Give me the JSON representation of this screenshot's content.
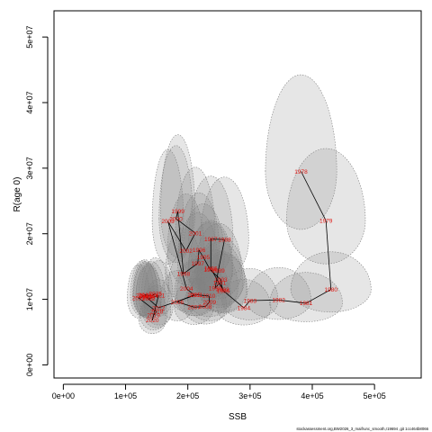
{
  "chart_data": {
    "type": "scatter",
    "xlabel": "SSB",
    "ylabel": "R(age 0)",
    "xlim": [
      -15000,
      575000
    ],
    "ylim": [
      -2000000,
      54000000
    ],
    "xticks": [
      0,
      100000,
      200000,
      300000,
      400000,
      500000
    ],
    "xtick_labels": [
      "0e+00",
      "1e+05",
      "2e+05",
      "3e+05",
      "4e+05",
      "5e+05"
    ],
    "yticks": [
      0,
      10000000,
      20000000,
      30000000,
      40000000,
      50000000
    ],
    "ytick_labels": [
      "0e+00",
      "1e+07",
      "2e+07",
      "3e+07",
      "4e+07",
      "5e+07"
    ],
    "grid": false,
    "footer": "stockassessment.org,BW2026_3_maifrunc_smooth,r19694 ,git 1cc464b8066",
    "colors": {
      "line": "#000000",
      "label": "#e0140f",
      "ellipse_fill": "#808080",
      "ellipse_stroke": "#808080"
    },
    "ellipse_ci": {
      "sx_ratio": 0.15,
      "sy_ratio_up": 0.5,
      "sy_ratio_down": 0.3
    },
    "points": [
      {
        "year": "1978",
        "x": 382000,
        "y": 29500000
      },
      {
        "year": "1979",
        "x": 422000,
        "y": 22000000
      },
      {
        "year": "1980",
        "x": 430000,
        "y": 11500000
      },
      {
        "year": "1981",
        "x": 390000,
        "y": 9400000
      },
      {
        "year": "1982",
        "x": 346000,
        "y": 9900000
      },
      {
        "year": "1983",
        "x": 300000,
        "y": 9800000
      },
      {
        "year": "1984",
        "x": 290000,
        "y": 8700000
      },
      {
        "year": "1985",
        "x": 257000,
        "y": 11300000
      },
      {
        "year": "1986",
        "x": 237000,
        "y": 14700000
      },
      {
        "year": "1987",
        "x": 237000,
        "y": 19200000
      },
      {
        "year": "1988",
        "x": 259000,
        "y": 19100000
      },
      {
        "year": "1989",
        "x": 249000,
        "y": 14400000
      },
      {
        "year": "1990",
        "x": 244000,
        "y": 11700000
      },
      {
        "year": "1991",
        "x": 251000,
        "y": 12500000
      },
      {
        "year": "1992",
        "x": 256000,
        "y": 11500000
      },
      {
        "year": "1993",
        "x": 253000,
        "y": 13000000
      },
      {
        "year": "1994",
        "x": 236000,
        "y": 14500000
      },
      {
        "year": "1995",
        "x": 225000,
        "y": 16400000
      },
      {
        "year": "1996",
        "x": 218000,
        "y": 17500000
      },
      {
        "year": "1997",
        "x": 216000,
        "y": 15500000
      },
      {
        "year": "1998",
        "x": 193000,
        "y": 13900000
      },
      {
        "year": "1999",
        "x": 184000,
        "y": 23400000
      },
      {
        "year": "2000",
        "x": 181000,
        "y": 22300000
      },
      {
        "year": "2001",
        "x": 212000,
        "y": 20100000
      },
      {
        "year": "2002",
        "x": 197000,
        "y": 17400000
      },
      {
        "year": "2003",
        "x": 168000,
        "y": 21900000
      },
      {
        "year": "2004",
        "x": 198000,
        "y": 11600000
      },
      {
        "year": "2005",
        "x": 210000,
        "y": 10700000
      },
      {
        "year": "2006",
        "x": 183000,
        "y": 9600000
      },
      {
        "year": "2007",
        "x": 210000,
        "y": 8800000
      },
      {
        "year": "2008",
        "x": 228000,
        "y": 8900000
      },
      {
        "year": "2009",
        "x": 235000,
        "y": 9600000
      },
      {
        "year": "2010",
        "x": 234000,
        "y": 10500000
      },
      {
        "year": "2011",
        "x": 214000,
        "y": 10700000
      },
      {
        "year": "2012",
        "x": 153000,
        "y": 8700000
      },
      {
        "year": "2013",
        "x": 133000,
        "y": 10400000
      },
      {
        "year": "2014",
        "x": 127000,
        "y": 10600000
      },
      {
        "year": "2015",
        "x": 137000,
        "y": 10300000
      },
      {
        "year": "2016",
        "x": 132000,
        "y": 10500000
      },
      {
        "year": "2017",
        "x": 121000,
        "y": 10200000
      },
      {
        "year": "2018",
        "x": 150000,
        "y": 8100000
      },
      {
        "year": "2019",
        "x": 145000,
        "y": 7600000
      },
      {
        "year": "2020",
        "x": 143000,
        "y": 6800000
      },
      {
        "year": "2021",
        "x": 153000,
        "y": 10600000
      },
      {
        "year": "2022",
        "x": 137000,
        "y": 10100000
      },
      {
        "year": "2023",
        "x": 131000,
        "y": 10700000
      },
      {
        "year": "2024",
        "x": 142000,
        "y": 10500000
      },
      {
        "year": "2025",
        "x": 148000,
        "y": 10900000
      }
    ]
  }
}
